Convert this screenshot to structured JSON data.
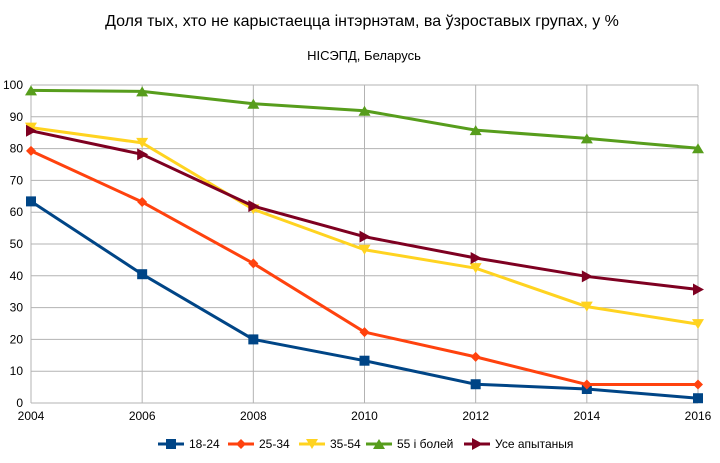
{
  "chart_data": {
    "type": "line",
    "title": "Доля тых, хто не карыстаецца інтэрнэтам, ва ўзроставых групах, у %",
    "subtitle": "НІСЭПД, Беларусь",
    "xlabel": "",
    "ylabel": "",
    "x": [
      "2004",
      "2006",
      "2008",
      "2010",
      "2012",
      "2014",
      "2016"
    ],
    "ylim": [
      0,
      100
    ],
    "yticks": [
      0,
      10,
      20,
      30,
      40,
      50,
      60,
      70,
      80,
      90,
      100
    ],
    "grid": true,
    "legend_position": "bottom",
    "series": [
      {
        "name": "18-24",
        "color": "#004586",
        "marker": "square",
        "values": [
          63.4,
          40.5,
          20,
          13.3,
          5.9,
          4.4,
          1.5
        ]
      },
      {
        "name": "25-34",
        "color": "#ff420e",
        "marker": "diamond",
        "values": [
          79.3,
          63.2,
          43.9,
          22.3,
          14.5,
          5.8,
          5.8
        ]
      },
      {
        "name": "35-54",
        "color": "#ffd320",
        "marker": "triangle-down",
        "values": [
          86.6,
          81.8,
          60.9,
          48.2,
          42.4,
          30.3,
          24.8
        ]
      },
      {
        "name": "55 і болей",
        "color": "#579d1c",
        "marker": "triangle-up",
        "values": [
          98.3,
          98,
          94.1,
          91.9,
          85.8,
          83.2,
          80.1
        ]
      },
      {
        "name": "Усе апытаныя",
        "color": "#7e0021",
        "marker": "triangle-right",
        "values": [
          85.6,
          78.2,
          61.9,
          52.3,
          45.6,
          39.8,
          35.7
        ]
      }
    ]
  }
}
